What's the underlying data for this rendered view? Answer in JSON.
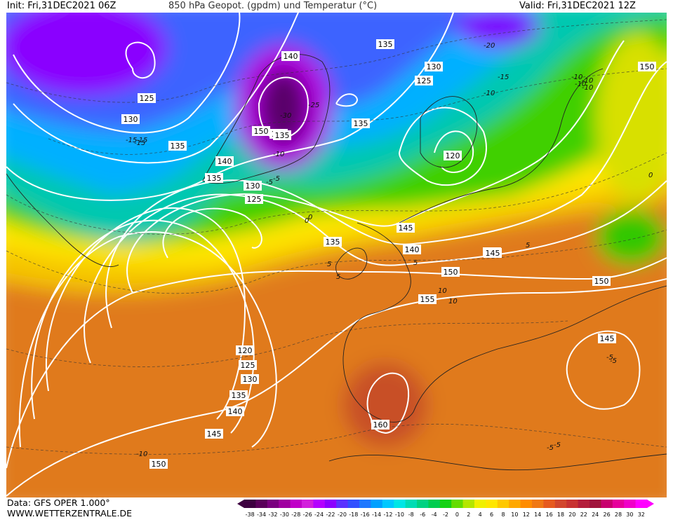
{
  "header": {
    "init": "Init: Fri,31DEC2021 06Z",
    "title": "850 hPa Geopot. (gpdm) und Temperatur (°C)",
    "valid": "Valid: Fri,31DEC2021 12Z"
  },
  "footer": {
    "data_source": "Data: GFS OPER 1.000°",
    "website": "WWW.WETTERZENTRALE.DE"
  },
  "colorbar": {
    "ticks": [
      "-38",
      "-34",
      "-32",
      "-30",
      "-28",
      "-26",
      "-24",
      "-22",
      "-20",
      "-18",
      "-16",
      "-14",
      "-12",
      "-10",
      "-8",
      "-6",
      "-4",
      "-2",
      "0",
      "2",
      "4",
      "6",
      "8",
      "10",
      "12",
      "14",
      "16",
      "18",
      "20",
      "22",
      "24",
      "26",
      "28",
      "30",
      "32"
    ],
    "colors": [
      "#3d0040",
      "#5a005a",
      "#7a007f",
      "#a000a0",
      "#c000c8",
      "#d21edc",
      "#b400ff",
      "#8c00ff",
      "#5a32ff",
      "#3250ff",
      "#1e78ff",
      "#00a0ff",
      "#00c8ff",
      "#00e6e6",
      "#00dcb4",
      "#00d282",
      "#00cd50",
      "#14d214",
      "#64dc00",
      "#b4e600",
      "#f0f000",
      "#ffe600",
      "#ffc800",
      "#ffa800",
      "#ff8c00",
      "#f07814",
      "#e65a1e",
      "#d2462d",
      "#c83232",
      "#b41e3c",
      "#a0143c",
      "#c8006e",
      "#e6009b",
      "#f000c8",
      "#ff00ff"
    ]
  },
  "geopotential_labels": [
    "140",
    "135",
    "130",
    "125",
    "130",
    "135",
    "140",
    "135",
    "120",
    "125",
    "130",
    "135",
    "140",
    "145",
    "150",
    "155",
    "150",
    "145",
    "150",
    "145",
    "140",
    "135",
    "120",
    "125",
    "130",
    "135",
    "140",
    "145",
    "150",
    "160",
    "150",
    "125",
    "135",
    "145"
  ],
  "temperature_labels": [
    "-15",
    "-15",
    "-10",
    "-10",
    "-5",
    "0",
    "5",
    "10",
    "-5",
    "-10",
    "0",
    "-5",
    "5",
    "-10",
    "-15",
    "-20",
    "-25",
    "-30",
    "5",
    "-10",
    "-10",
    "5",
    "10",
    "0",
    "-5",
    "-5",
    "-5",
    "-10",
    "-15"
  ]
}
